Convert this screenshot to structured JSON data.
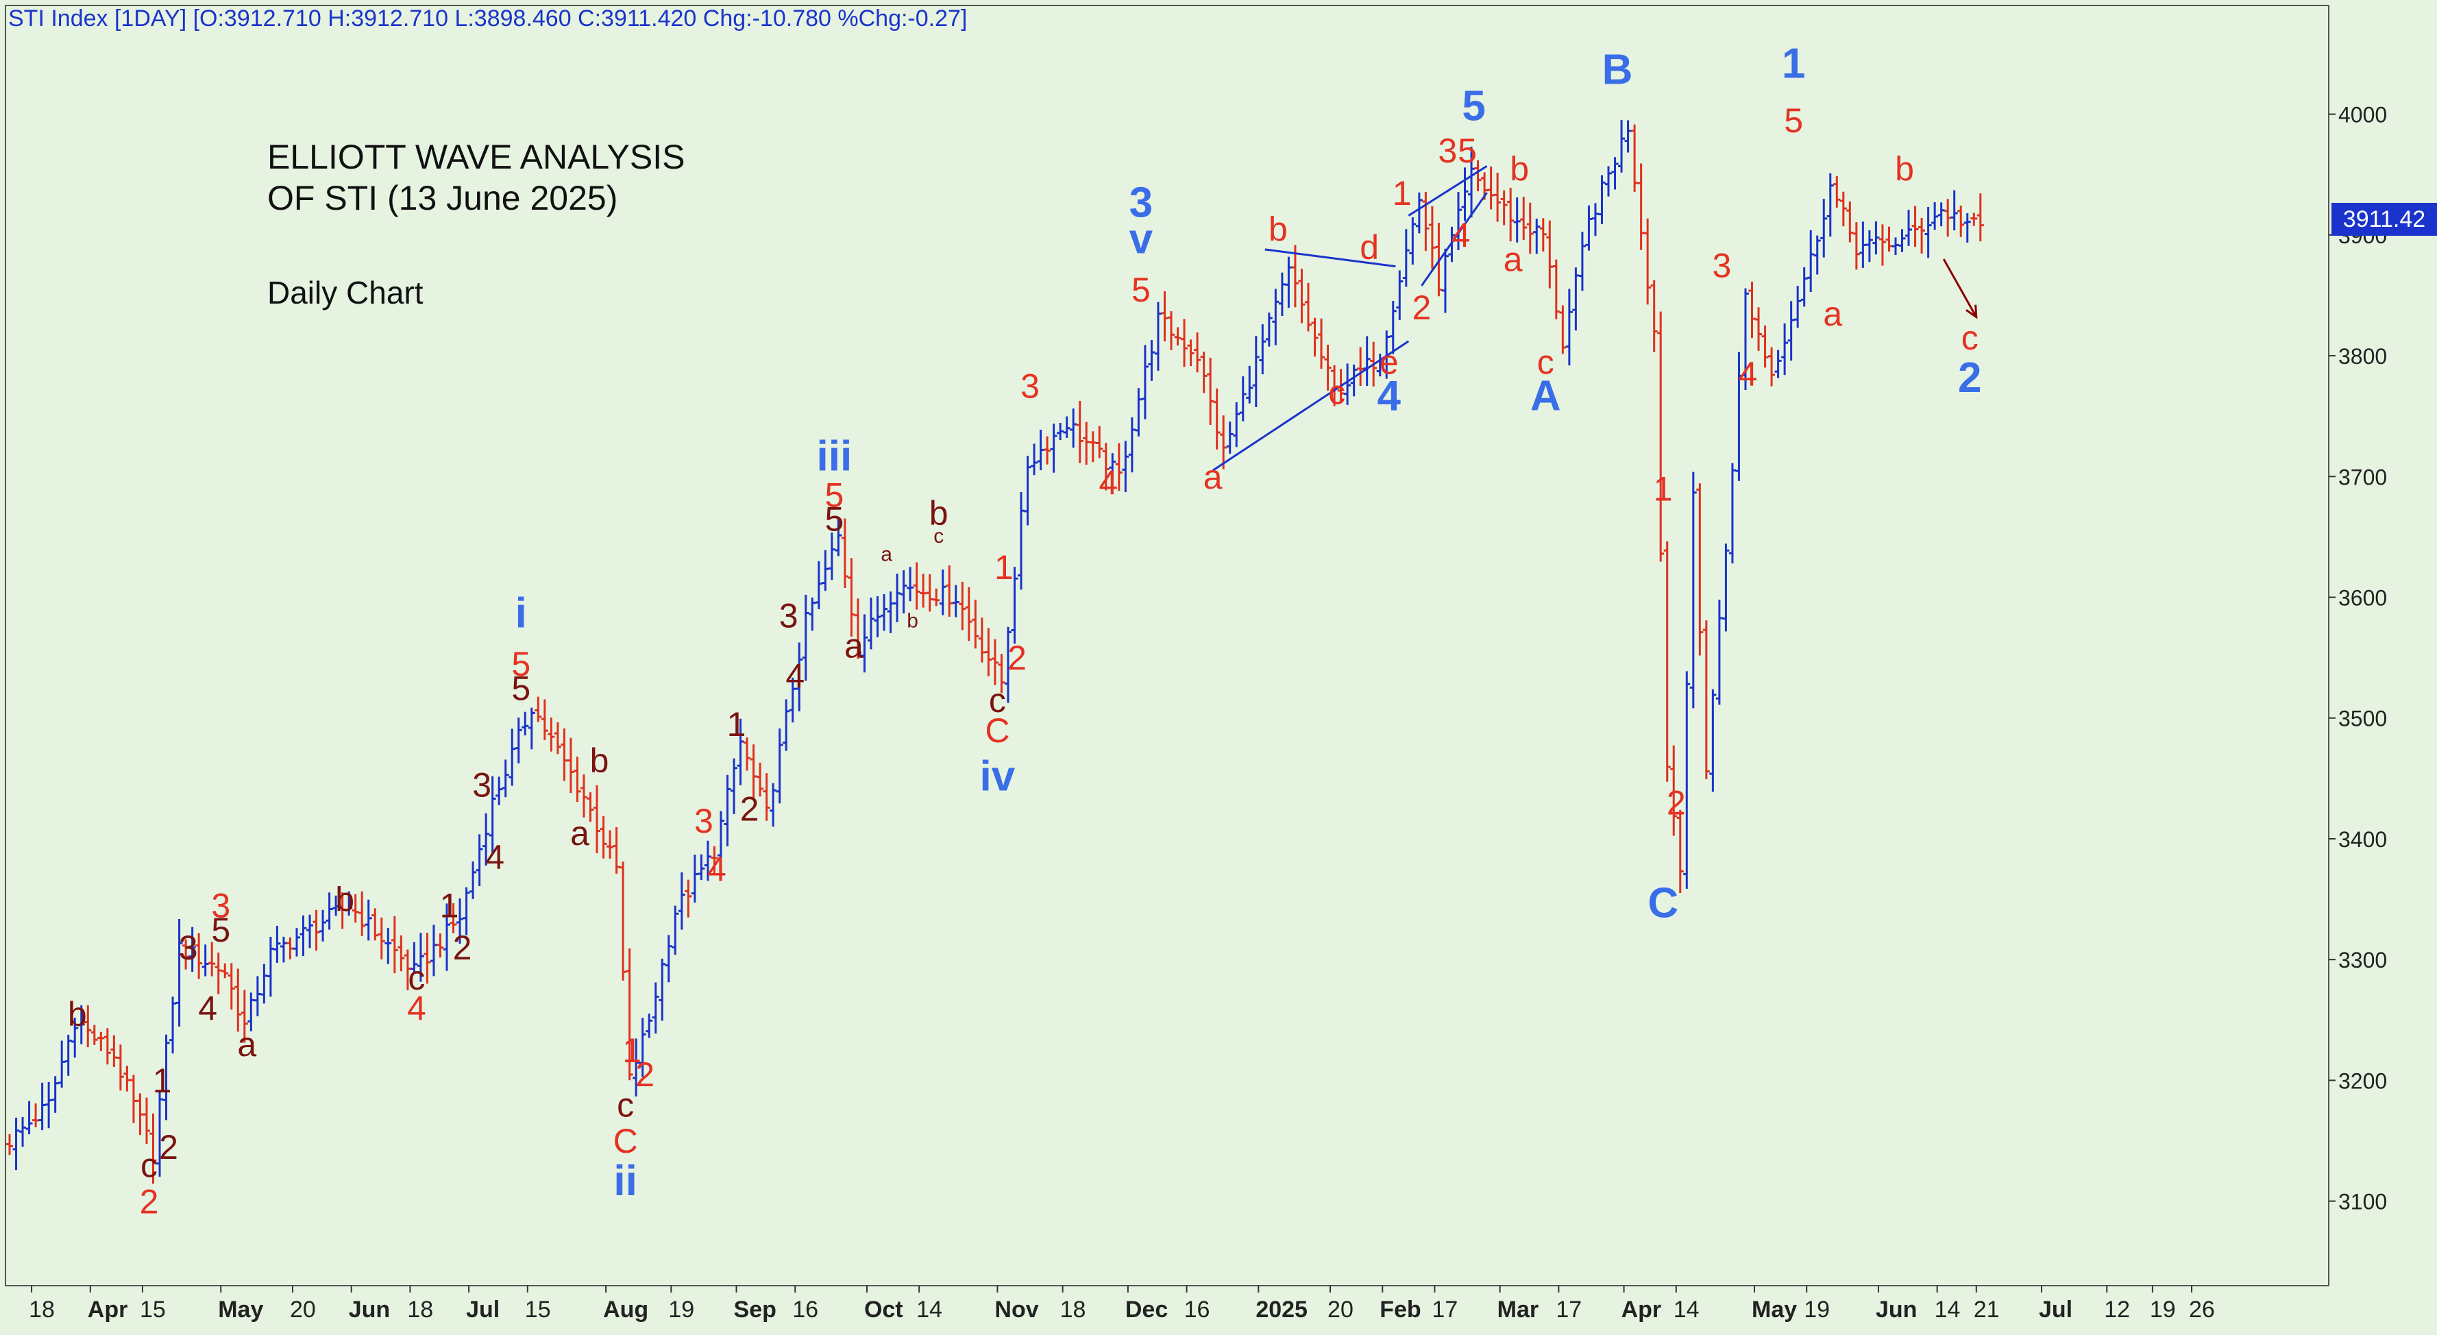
{
  "header": {
    "text": "STI Index [1DAY] [O:3912.710 H:3912.710 L:3898.460 C:3911.420 Chg:-10.780 %Chg:-0.27]"
  },
  "annotation": {
    "line1": "ELLIOTT WAVE ANALYSIS",
    "line2": "OF STI (13 June 2025)",
    "line3": "Daily Chart"
  },
  "price_tag": "3911.42",
  "colors": {
    "background": "#e6f3e0",
    "up_bar": "#1a33cc",
    "down_bar": "#e03020",
    "label_red": "#e53222",
    "label_blue": "#3a6ee8",
    "label_dark": "#7a1410",
    "trendline": "#1a33cc"
  },
  "chart_data": {
    "type": "ohlc",
    "ylim": [
      3030,
      4090
    ],
    "xlim": [
      0,
      356
    ],
    "y_ticks": [
      3100,
      3200,
      3300,
      3400,
      3500,
      3600,
      3700,
      3800,
      3900,
      4000
    ],
    "x_tick_labels": [
      {
        "t": 4,
        "label": "18"
      },
      {
        "t": 13,
        "label": "Apr"
      },
      {
        "t": 21,
        "label": "15"
      },
      {
        "t": 33,
        "label": "May"
      },
      {
        "t": 44,
        "label": "20"
      },
      {
        "t": 53,
        "label": "Jun"
      },
      {
        "t": 62,
        "label": "18"
      },
      {
        "t": 71,
        "label": "Jul"
      },
      {
        "t": 80,
        "label": "15"
      },
      {
        "t": 92,
        "label": "Aug"
      },
      {
        "t": 102,
        "label": "19"
      },
      {
        "t": 112,
        "label": "Sep"
      },
      {
        "t": 121,
        "label": "16"
      },
      {
        "t": 132,
        "label": "Oct"
      },
      {
        "t": 140,
        "label": "14"
      },
      {
        "t": 152,
        "label": "Nov"
      },
      {
        "t": 162,
        "label": "18"
      },
      {
        "t": 172,
        "label": "Dec"
      },
      {
        "t": 181,
        "label": "16"
      },
      {
        "t": 192,
        "label": "2025"
      },
      {
        "t": 203,
        "label": "20"
      },
      {
        "t": 211,
        "label": "Feb"
      },
      {
        "t": 219,
        "label": "17"
      },
      {
        "t": 229,
        "label": "Mar"
      },
      {
        "t": 238,
        "label": "17"
      },
      {
        "t": 248,
        "label": "Apr"
      },
      {
        "t": 256,
        "label": "14"
      },
      {
        "t": 268,
        "label": "May"
      },
      {
        "t": 276,
        "label": "19"
      },
      {
        "t": 287,
        "label": "Jun"
      },
      {
        "t": 296,
        "label": "14"
      },
      {
        "t": 302,
        "label": "21"
      },
      {
        "t": 312,
        "label": "Jul"
      },
      {
        "t": 322,
        "label": "12"
      },
      {
        "t": 329,
        "label": "19"
      },
      {
        "t": 335,
        "label": "26"
      }
    ],
    "path": [
      [
        0,
        3150
      ],
      [
        6,
        3180
      ],
      [
        10,
        3250
      ],
      [
        16,
        3220
      ],
      [
        22,
        3140
      ],
      [
        26,
        3310
      ],
      [
        33,
        3290
      ],
      [
        36,
        3245
      ],
      [
        40,
        3305
      ],
      [
        52,
        3345
      ],
      [
        62,
        3290
      ],
      [
        69,
        3335
      ],
      [
        74,
        3430
      ],
      [
        80,
        3510
      ],
      [
        88,
        3435
      ],
      [
        93,
        3375
      ],
      [
        95,
        3200
      ],
      [
        98,
        3250
      ],
      [
        102,
        3340
      ],
      [
        108,
        3390
      ],
      [
        112,
        3480
      ],
      [
        116,
        3420
      ],
      [
        122,
        3580
      ],
      [
        127,
        3650
      ],
      [
        130,
        3560
      ],
      [
        136,
        3610
      ],
      [
        145,
        3600
      ],
      [
        152,
        3530
      ],
      [
        156,
        3710
      ],
      [
        162,
        3745
      ],
      [
        170,
        3700
      ],
      [
        176,
        3830
      ],
      [
        182,
        3800
      ],
      [
        186,
        3720
      ],
      [
        196,
        3870
      ],
      [
        203,
        3770
      ],
      [
        210,
        3800
      ],
      [
        216,
        3930
      ],
      [
        219,
        3860
      ],
      [
        224,
        3950
      ],
      [
        231,
        3910
      ],
      [
        235,
        3900
      ],
      [
        238,
        3810
      ],
      [
        242,
        3910
      ],
      [
        248,
        3990
      ],
      [
        252,
        3820
      ],
      [
        254,
        3460
      ],
      [
        256,
        3380
      ],
      [
        258,
        3680
      ],
      [
        260,
        3460
      ],
      [
        263,
        3640
      ],
      [
        266,
        3850
      ],
      [
        270,
        3785
      ],
      [
        276,
        3880
      ],
      [
        279,
        3940
      ],
      [
        283,
        3890
      ],
      [
        290,
        3895
      ],
      [
        296,
        3920
      ],
      [
        302,
        3905
      ]
    ],
    "trendlines": [
      {
        "from": [
          185,
          3705
        ],
        "to": [
          215,
          3812
        ]
      },
      {
        "from": [
          193,
          3888
        ],
        "to": [
          213,
          3874
        ]
      },
      {
        "from": [
          215,
          3916
        ],
        "to": [
          227,
          3957
        ]
      },
      {
        "from": [
          217,
          3858
        ],
        "to": [
          227,
          3935
        ]
      }
    ],
    "arrow": {
      "from": [
        297,
        3880
      ],
      "to": [
        302,
        3832
      ]
    },
    "wave_labels": [
      {
        "t": 11,
        "v": 3245,
        "text": "b",
        "c": "dark"
      },
      {
        "t": 24,
        "v": 3190,
        "text": "1",
        "c": "dark"
      },
      {
        "t": 25,
        "v": 3135,
        "text": "2",
        "c": "dark"
      },
      {
        "t": 22,
        "v": 3120,
        "text": "c",
        "c": "dark"
      },
      {
        "t": 22,
        "v": 3090,
        "text": "2",
        "c": "red"
      },
      {
        "t": 28,
        "v": 3300,
        "text": "3",
        "c": "dark"
      },
      {
        "t": 33,
        "v": 3335,
        "text": "3",
        "c": "red"
      },
      {
        "t": 33,
        "v": 3315,
        "text": "5",
        "c": "dark"
      },
      {
        "t": 31,
        "v": 3250,
        "text": "4",
        "c": "dark"
      },
      {
        "t": 37,
        "v": 3220,
        "text": "a",
        "c": "dark"
      },
      {
        "t": 52,
        "v": 3340,
        "text": "b",
        "c": "dark"
      },
      {
        "t": 63,
        "v": 3275,
        "text": "c",
        "c": "dark"
      },
      {
        "t": 63,
        "v": 3250,
        "text": "4",
        "c": "red"
      },
      {
        "t": 68,
        "v": 3335,
        "text": "1",
        "c": "dark"
      },
      {
        "t": 70,
        "v": 3300,
        "text": "2",
        "c": "dark"
      },
      {
        "t": 73,
        "v": 3435,
        "text": "3",
        "c": "dark"
      },
      {
        "t": 75,
        "v": 3375,
        "text": "4",
        "c": "dark"
      },
      {
        "t": 79,
        "v": 3515,
        "text": "5",
        "c": "dark"
      },
      {
        "t": 79,
        "v": 3535,
        "text": "5",
        "c": "red"
      },
      {
        "t": 79,
        "v": 3575,
        "text": "i",
        "c": "blue"
      },
      {
        "t": 91,
        "v": 3455,
        "text": "b",
        "c": "dark"
      },
      {
        "t": 88,
        "v": 3395,
        "text": "a",
        "c": "dark"
      },
      {
        "t": 96,
        "v": 3215,
        "text": "1",
        "c": "red"
      },
      {
        "t": 98,
        "v": 3195,
        "text": "2",
        "c": "red"
      },
      {
        "t": 95,
        "v": 3170,
        "text": "c",
        "c": "dark"
      },
      {
        "t": 95,
        "v": 3140,
        "text": "C",
        "c": "red"
      },
      {
        "t": 95,
        "v": 3105,
        "text": "ii",
        "c": "blue"
      },
      {
        "t": 107,
        "v": 3405,
        "text": "3",
        "c": "red"
      },
      {
        "t": 109,
        "v": 3365,
        "text": "4",
        "c": "red"
      },
      {
        "t": 112,
        "v": 3485,
        "text": "1",
        "c": "dark"
      },
      {
        "t": 114,
        "v": 3415,
        "text": "2",
        "c": "dark"
      },
      {
        "t": 120,
        "v": 3575,
        "text": "3",
        "c": "dark"
      },
      {
        "t": 121,
        "v": 3525,
        "text": "4",
        "c": "dark"
      },
      {
        "t": 127,
        "v": 3705,
        "text": "iii",
        "c": "blue"
      },
      {
        "t": 127,
        "v": 3675,
        "text": "5",
        "c": "red"
      },
      {
        "t": 127,
        "v": 3655,
        "text": "5",
        "c": "dark"
      },
      {
        "t": 130,
        "v": 3550,
        "text": "a",
        "c": "dark"
      },
      {
        "t": 135,
        "v": 3630,
        "text": "a",
        "c": "dark",
        "small": true
      },
      {
        "t": 139,
        "v": 3575,
        "text": "b",
        "c": "dark",
        "small": true
      },
      {
        "t": 143,
        "v": 3660,
        "text": "b",
        "c": "dark"
      },
      {
        "t": 143,
        "v": 3645,
        "text": "c",
        "c": "dark",
        "small": true
      },
      {
        "t": 153,
        "v": 3615,
        "text": "1",
        "c": "red"
      },
      {
        "t": 155,
        "v": 3540,
        "text": "2",
        "c": "red"
      },
      {
        "t": 152,
        "v": 3505,
        "text": "c",
        "c": "dark"
      },
      {
        "t": 152,
        "v": 3480,
        "text": "C",
        "c": "red"
      },
      {
        "t": 152,
        "v": 3440,
        "text": "iv",
        "c": "blue"
      },
      {
        "t": 157,
        "v": 3765,
        "text": "3",
        "c": "red"
      },
      {
        "t": 169,
        "v": 3685,
        "text": "4",
        "c": "red"
      },
      {
        "t": 174,
        "v": 3845,
        "text": "5",
        "c": "red"
      },
      {
        "t": 174,
        "v": 3885,
        "text": "v",
        "c": "blue"
      },
      {
        "t": 174,
        "v": 3915,
        "text": "3",
        "c": "blue"
      },
      {
        "t": 185,
        "v": 3690,
        "text": "a",
        "c": "red"
      },
      {
        "t": 195,
        "v": 3895,
        "text": "b",
        "c": "red"
      },
      {
        "t": 204,
        "v": 3760,
        "text": "c",
        "c": "red"
      },
      {
        "t": 209,
        "v": 3880,
        "text": "d",
        "c": "red"
      },
      {
        "t": 212,
        "v": 3785,
        "text": "e",
        "c": "red"
      },
      {
        "t": 212,
        "v": 3755,
        "text": "4",
        "c": "blue"
      },
      {
        "t": 214,
        "v": 3925,
        "text": "1",
        "c": "red"
      },
      {
        "t": 217,
        "v": 3830,
        "text": "2",
        "c": "red"
      },
      {
        "t": 221,
        "v": 3960,
        "text": "3",
        "c": "red"
      },
      {
        "t": 224,
        "v": 3960,
        "text": "5",
        "c": "red"
      },
      {
        "t": 223,
        "v": 3890,
        "text": "4",
        "c": "red"
      },
      {
        "t": 225,
        "v": 3995,
        "text": "5",
        "c": "blue"
      },
      {
        "t": 232,
        "v": 3945,
        "text": "b",
        "c": "red"
      },
      {
        "t": 231,
        "v": 3870,
        "text": "a",
        "c": "red"
      },
      {
        "t": 236,
        "v": 3785,
        "text": "c",
        "c": "red"
      },
      {
        "t": 236,
        "v": 3755,
        "text": "A",
        "c": "blue"
      },
      {
        "t": 247,
        "v": 4025,
        "text": "B",
        "c": "blue"
      },
      {
        "t": 254,
        "v": 3680,
        "text": "1",
        "c": "red"
      },
      {
        "t": 256,
        "v": 3420,
        "text": "2",
        "c": "red"
      },
      {
        "t": 254,
        "v": 3335,
        "text": "C",
        "c": "blue"
      },
      {
        "t": 263,
        "v": 3865,
        "text": "3",
        "c": "red"
      },
      {
        "t": 267,
        "v": 3775,
        "text": "4",
        "c": "red"
      },
      {
        "t": 274,
        "v": 3985,
        "text": "5",
        "c": "red"
      },
      {
        "t": 274,
        "v": 4030,
        "text": "1",
        "c": "blue"
      },
      {
        "t": 280,
        "v": 3825,
        "text": "a",
        "c": "red"
      },
      {
        "t": 291,
        "v": 3945,
        "text": "b",
        "c": "red"
      },
      {
        "t": 301,
        "v": 3805,
        "text": "c",
        "c": "red"
      },
      {
        "t": 301,
        "v": 3770,
        "text": "2",
        "c": "blue"
      }
    ]
  }
}
